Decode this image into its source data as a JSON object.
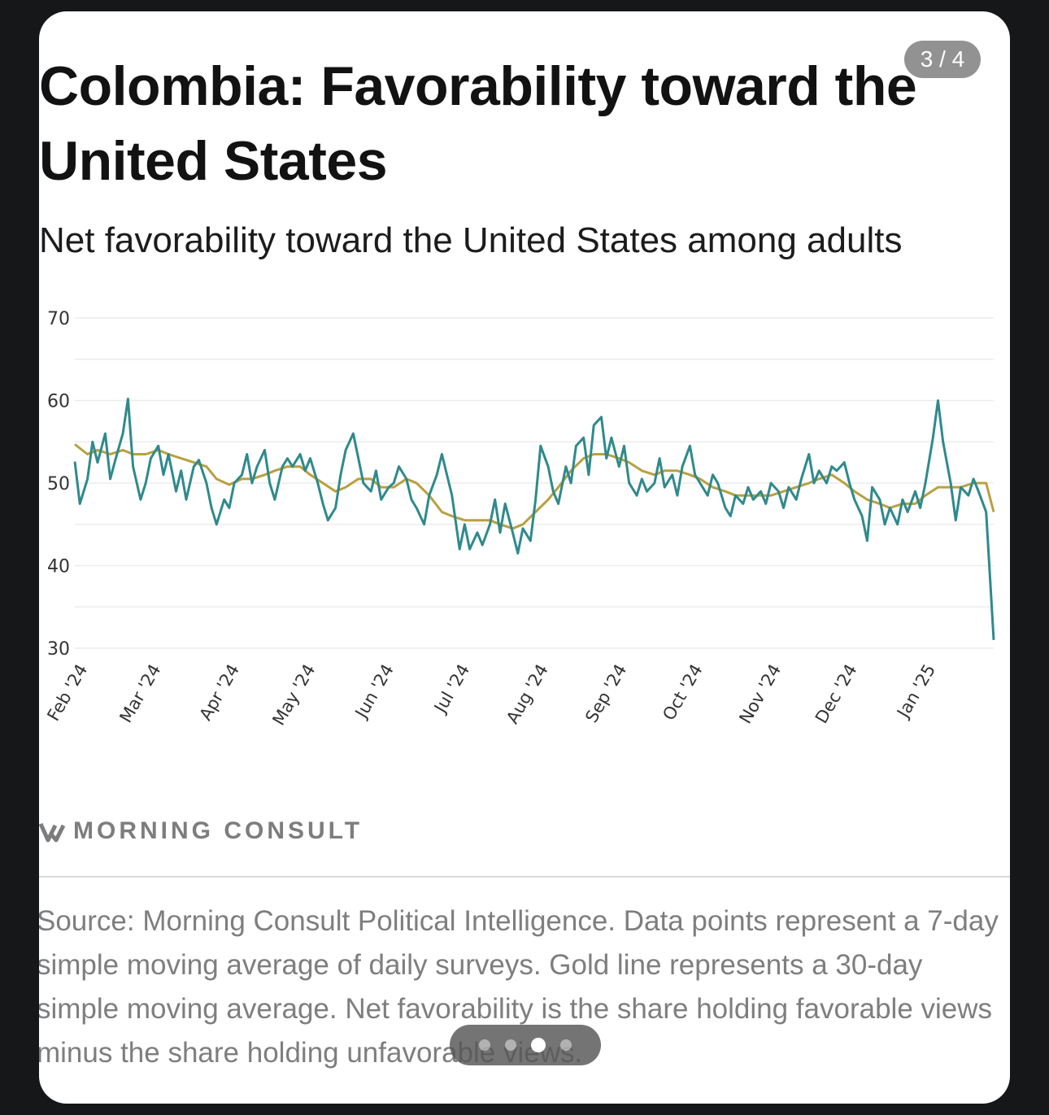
{
  "post": {
    "title": "Colombia: Favorability toward the United States",
    "subtitle": "Net favorability toward the United States among adults",
    "counter": "3 / 4",
    "brand": "MORNING CONSULT",
    "brand_icon": "morning-consult-logo",
    "source": "Source: Morning Consult Political Intelligence. Data points represent a 7-day simple moving average of daily surveys. Gold line represents a 30-day simple moving average. Net favorability is the share holding favorable views minus the share holding unfavorable views.",
    "pager": {
      "total": 4,
      "active_index": 2
    }
  },
  "colors": {
    "daily": "#2e8a8c",
    "average": "#b9a041",
    "grid": "#ececec",
    "tick_text": "#333333"
  },
  "chart_data": {
    "type": "line",
    "ylim": [
      30,
      70
    ],
    "y_ticks": [
      30,
      40,
      50,
      60,
      70
    ],
    "x_range": [
      "2024-02-01",
      "2025-01-29"
    ],
    "x_ticks": [
      {
        "label": "Feb '24",
        "date": "2024-02-01"
      },
      {
        "label": "Mar '24",
        "date": "2024-03-01"
      },
      {
        "label": "Apr '24",
        "date": "2024-04-01"
      },
      {
        "label": "May '24",
        "date": "2024-05-01"
      },
      {
        "label": "Jun '24",
        "date": "2024-06-01"
      },
      {
        "label": "Jul '24",
        "date": "2024-07-01"
      },
      {
        "label": "Aug '24",
        "date": "2024-08-01"
      },
      {
        "label": "Sep '24",
        "date": "2024-09-01"
      },
      {
        "label": "Oct '24",
        "date": "2024-10-01"
      },
      {
        "label": "Nov '24",
        "date": "2024-11-01"
      },
      {
        "label": "Dec '24",
        "date": "2024-12-01"
      },
      {
        "label": "Jan '25",
        "date": "2025-01-01"
      }
    ],
    "grid": true,
    "series": [
      {
        "role": "daily",
        "points": [
          [
            "2024-02-01",
            52.6
          ],
          [
            "2024-02-03",
            47.5
          ],
          [
            "2024-02-06",
            50.5
          ],
          [
            "2024-02-08",
            55.0
          ],
          [
            "2024-02-10",
            52.5
          ],
          [
            "2024-02-13",
            56.0
          ],
          [
            "2024-02-15",
            50.5
          ],
          [
            "2024-02-17",
            52.8
          ],
          [
            "2024-02-20",
            56.0
          ],
          [
            "2024-02-22",
            60.2
          ],
          [
            "2024-02-24",
            52.0
          ],
          [
            "2024-02-27",
            48.0
          ],
          [
            "2024-02-29",
            50.0
          ],
          [
            "2024-03-02",
            53.0
          ],
          [
            "2024-03-05",
            54.5
          ],
          [
            "2024-03-07",
            51.0
          ],
          [
            "2024-03-09",
            53.5
          ],
          [
            "2024-03-12",
            49.0
          ],
          [
            "2024-03-14",
            51.5
          ],
          [
            "2024-03-16",
            48.0
          ],
          [
            "2024-03-19",
            52.0
          ],
          [
            "2024-03-21",
            52.8
          ],
          [
            "2024-03-24",
            50.0
          ],
          [
            "2024-03-26",
            47.0
          ],
          [
            "2024-03-28",
            45.0
          ],
          [
            "2024-03-31",
            48.0
          ],
          [
            "2024-04-02",
            47.0
          ],
          [
            "2024-04-04",
            50.0
          ],
          [
            "2024-04-07",
            51.0
          ],
          [
            "2024-04-09",
            53.5
          ],
          [
            "2024-04-11",
            50.0
          ],
          [
            "2024-04-13",
            52.0
          ],
          [
            "2024-04-16",
            54.0
          ],
          [
            "2024-04-18",
            50.0
          ],
          [
            "2024-04-20",
            48.0
          ],
          [
            "2024-04-23",
            52.0
          ],
          [
            "2024-04-25",
            53.0
          ],
          [
            "2024-04-27",
            52.0
          ],
          [
            "2024-04-30",
            53.5
          ],
          [
            "2024-05-02",
            51.5
          ],
          [
            "2024-05-04",
            53.0
          ],
          [
            "2024-05-07",
            50.0
          ],
          [
            "2024-05-09",
            47.5
          ],
          [
            "2024-05-11",
            45.5
          ],
          [
            "2024-05-14",
            47.0
          ],
          [
            "2024-05-16",
            51.0
          ],
          [
            "2024-05-18",
            54.0
          ],
          [
            "2024-05-21",
            56.0
          ],
          [
            "2024-05-23",
            53.0
          ],
          [
            "2024-05-25",
            50.0
          ],
          [
            "2024-05-28",
            49.0
          ],
          [
            "2024-05-30",
            51.5
          ],
          [
            "2024-06-01",
            48.0
          ],
          [
            "2024-06-04",
            49.5
          ],
          [
            "2024-06-06",
            50.0
          ],
          [
            "2024-06-08",
            52.0
          ],
          [
            "2024-06-11",
            50.5
          ],
          [
            "2024-06-13",
            48.0
          ],
          [
            "2024-06-15",
            47.0
          ],
          [
            "2024-06-18",
            45.0
          ],
          [
            "2024-06-20",
            48.5
          ],
          [
            "2024-06-23",
            51.0
          ],
          [
            "2024-06-25",
            53.5
          ],
          [
            "2024-06-27",
            51.0
          ],
          [
            "2024-06-29",
            48.5
          ],
          [
            "2024-07-02",
            42.0
          ],
          [
            "2024-07-04",
            45.0
          ],
          [
            "2024-07-06",
            42.0
          ],
          [
            "2024-07-09",
            44.0
          ],
          [
            "2024-07-11",
            42.5
          ],
          [
            "2024-07-14",
            45.0
          ],
          [
            "2024-07-16",
            48.0
          ],
          [
            "2024-07-18",
            44.0
          ],
          [
            "2024-07-20",
            47.5
          ],
          [
            "2024-07-23",
            44.0
          ],
          [
            "2024-07-25",
            41.5
          ],
          [
            "2024-07-27",
            44.5
          ],
          [
            "2024-07-30",
            43.0
          ],
          [
            "2024-08-01",
            48.0
          ],
          [
            "2024-08-03",
            54.5
          ],
          [
            "2024-08-06",
            52.0
          ],
          [
            "2024-08-08",
            49.0
          ],
          [
            "2024-08-10",
            47.5
          ],
          [
            "2024-08-13",
            52.0
          ],
          [
            "2024-08-15",
            50.0
          ],
          [
            "2024-08-17",
            54.5
          ],
          [
            "2024-08-20",
            55.5
          ],
          [
            "2024-08-22",
            51.0
          ],
          [
            "2024-08-24",
            57.0
          ],
          [
            "2024-08-27",
            58.0
          ],
          [
            "2024-08-29",
            53.0
          ],
          [
            "2024-08-31",
            55.5
          ],
          [
            "2024-09-03",
            52.0
          ],
          [
            "2024-09-05",
            54.5
          ],
          [
            "2024-09-07",
            50.0
          ],
          [
            "2024-09-10",
            48.5
          ],
          [
            "2024-09-12",
            50.5
          ],
          [
            "2024-09-14",
            49.0
          ],
          [
            "2024-09-17",
            50.0
          ],
          [
            "2024-09-19",
            53.0
          ],
          [
            "2024-09-21",
            49.5
          ],
          [
            "2024-09-24",
            51.0
          ],
          [
            "2024-09-26",
            48.5
          ],
          [
            "2024-09-28",
            52.0
          ],
          [
            "2024-10-01",
            54.5
          ],
          [
            "2024-10-03",
            51.0
          ],
          [
            "2024-10-05",
            50.0
          ],
          [
            "2024-10-08",
            48.5
          ],
          [
            "2024-10-10",
            51.0
          ],
          [
            "2024-10-12",
            50.0
          ],
          [
            "2024-10-15",
            47.0
          ],
          [
            "2024-10-17",
            46.0
          ],
          [
            "2024-10-19",
            48.5
          ],
          [
            "2024-10-22",
            47.5
          ],
          [
            "2024-10-24",
            49.5
          ],
          [
            "2024-10-26",
            48.0
          ],
          [
            "2024-10-29",
            49.0
          ],
          [
            "2024-10-31",
            47.5
          ],
          [
            "2024-11-02",
            50.0
          ],
          [
            "2024-11-05",
            49.0
          ],
          [
            "2024-11-07",
            47.0
          ],
          [
            "2024-11-09",
            49.5
          ],
          [
            "2024-11-12",
            48.0
          ],
          [
            "2024-11-14",
            50.5
          ],
          [
            "2024-11-17",
            53.5
          ],
          [
            "2024-11-19",
            50.0
          ],
          [
            "2024-11-21",
            51.5
          ],
          [
            "2024-11-24",
            50.0
          ],
          [
            "2024-11-26",
            52.0
          ],
          [
            "2024-11-28",
            51.5
          ],
          [
            "2024-12-01",
            52.5
          ],
          [
            "2024-12-03",
            50.0
          ],
          [
            "2024-12-05",
            48.0
          ],
          [
            "2024-12-08",
            46.0
          ],
          [
            "2024-12-10",
            43.0
          ],
          [
            "2024-12-12",
            49.5
          ],
          [
            "2024-12-15",
            48.0
          ],
          [
            "2024-12-17",
            45.0
          ],
          [
            "2024-12-19",
            47.0
          ],
          [
            "2024-12-22",
            45.0
          ],
          [
            "2024-12-24",
            48.0
          ],
          [
            "2024-12-26",
            46.5
          ],
          [
            "2024-12-29",
            49.0
          ],
          [
            "2024-12-31",
            47.0
          ],
          [
            "2025-01-02",
            50.0
          ],
          [
            "2025-01-05",
            55.5
          ],
          [
            "2025-01-07",
            60.0
          ],
          [
            "2025-01-09",
            55.0
          ],
          [
            "2025-01-12",
            50.0
          ],
          [
            "2025-01-14",
            45.5
          ],
          [
            "2025-01-16",
            49.5
          ],
          [
            "2025-01-19",
            48.5
          ],
          [
            "2025-01-21",
            50.5
          ],
          [
            "2025-01-23",
            49.0
          ],
          [
            "2025-01-26",
            46.5
          ],
          [
            "2025-01-29",
            31.0
          ]
        ]
      },
      {
        "role": "average",
        "points": [
          [
            "2024-02-01",
            54.7
          ],
          [
            "2024-02-06",
            53.5
          ],
          [
            "2024-02-10",
            54.0
          ],
          [
            "2024-02-15",
            53.5
          ],
          [
            "2024-02-20",
            54.0
          ],
          [
            "2024-02-24",
            53.5
          ],
          [
            "2024-02-29",
            53.5
          ],
          [
            "2024-03-05",
            54.0
          ],
          [
            "2024-03-09",
            53.5
          ],
          [
            "2024-03-14",
            53.0
          ],
          [
            "2024-03-19",
            52.5
          ],
          [
            "2024-03-24",
            52.0
          ],
          [
            "2024-03-28",
            50.5
          ],
          [
            "2024-04-02",
            49.8
          ],
          [
            "2024-04-07",
            50.5
          ],
          [
            "2024-04-11",
            50.5
          ],
          [
            "2024-04-16",
            51.0
          ],
          [
            "2024-04-20",
            51.5
          ],
          [
            "2024-04-25",
            52.0
          ],
          [
            "2024-04-30",
            52.0
          ],
          [
            "2024-05-04",
            51.0
          ],
          [
            "2024-05-09",
            50.0
          ],
          [
            "2024-05-14",
            49.0
          ],
          [
            "2024-05-18",
            49.5
          ],
          [
            "2024-05-23",
            50.5
          ],
          [
            "2024-05-28",
            50.5
          ],
          [
            "2024-06-01",
            49.5
          ],
          [
            "2024-06-06",
            49.5
          ],
          [
            "2024-06-11",
            50.5
          ],
          [
            "2024-06-15",
            50.0
          ],
          [
            "2024-06-20",
            48.5
          ],
          [
            "2024-06-25",
            46.5
          ],
          [
            "2024-06-29",
            46.0
          ],
          [
            "2024-07-04",
            45.5
          ],
          [
            "2024-07-09",
            45.5
          ],
          [
            "2024-07-14",
            45.5
          ],
          [
            "2024-07-18",
            45.0
          ],
          [
            "2024-07-23",
            44.5
          ],
          [
            "2024-07-27",
            45.0
          ],
          [
            "2024-08-01",
            46.5
          ],
          [
            "2024-08-06",
            48.0
          ],
          [
            "2024-08-10",
            49.5
          ],
          [
            "2024-08-15",
            51.5
          ],
          [
            "2024-08-20",
            53.0
          ],
          [
            "2024-08-24",
            53.5
          ],
          [
            "2024-08-29",
            53.5
          ],
          [
            "2024-09-03",
            53.0
          ],
          [
            "2024-09-07",
            52.5
          ],
          [
            "2024-09-12",
            51.5
          ],
          [
            "2024-09-17",
            51.0
          ],
          [
            "2024-09-21",
            51.5
          ],
          [
            "2024-09-26",
            51.5
          ],
          [
            "2024-10-01",
            51.0
          ],
          [
            "2024-10-05",
            50.5
          ],
          [
            "2024-10-10",
            49.5
          ],
          [
            "2024-10-15",
            49.0
          ],
          [
            "2024-10-19",
            48.5
          ],
          [
            "2024-10-24",
            48.5
          ],
          [
            "2024-10-29",
            48.5
          ],
          [
            "2024-11-02",
            48.5
          ],
          [
            "2024-11-07",
            49.0
          ],
          [
            "2024-11-12",
            49.5
          ],
          [
            "2024-11-17",
            50.0
          ],
          [
            "2024-11-21",
            50.5
          ],
          [
            "2024-11-26",
            51.0
          ],
          [
            "2024-12-01",
            50.0
          ],
          [
            "2024-12-05",
            49.0
          ],
          [
            "2024-12-10",
            48.0
          ],
          [
            "2024-12-15",
            47.5
          ],
          [
            "2024-12-19",
            47.0
          ],
          [
            "2024-12-24",
            47.5
          ],
          [
            "2024-12-29",
            47.5
          ],
          [
            "2025-01-02",
            48.5
          ],
          [
            "2025-01-07",
            49.5
          ],
          [
            "2025-01-12",
            49.5
          ],
          [
            "2025-01-16",
            49.5
          ],
          [
            "2025-01-21",
            50.0
          ],
          [
            "2025-01-26",
            50.0
          ],
          [
            "2025-01-29",
            46.5
          ]
        ]
      }
    ]
  }
}
